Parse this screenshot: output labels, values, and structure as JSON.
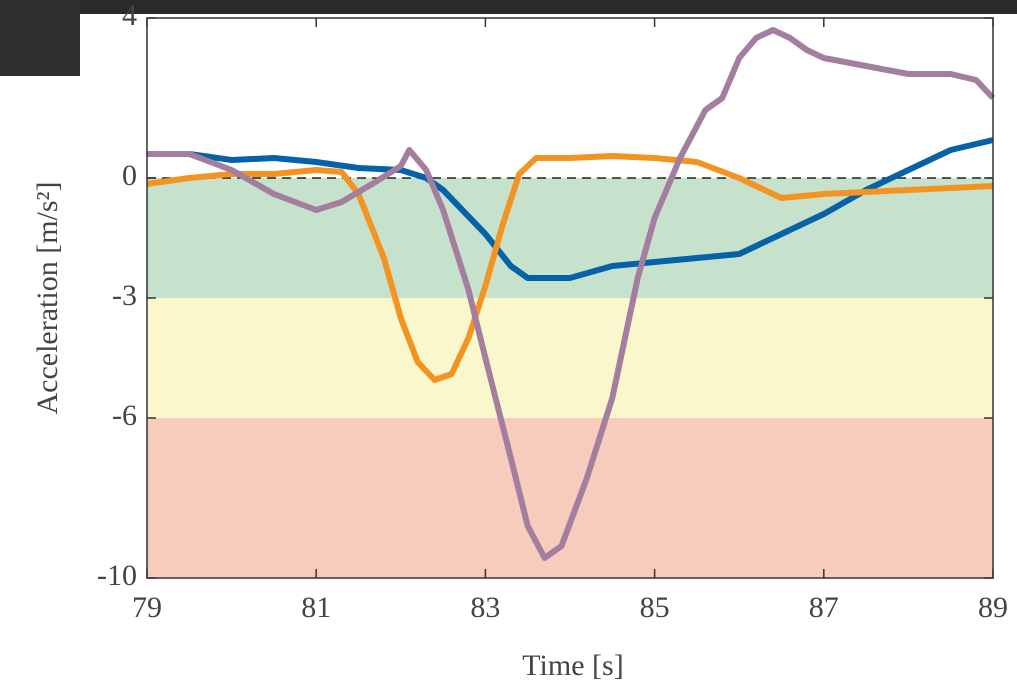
{
  "chart_data": {
    "type": "line",
    "xlabel": "Time [s]",
    "ylabel": "Acceleration [m/s²]",
    "xlim": [
      79,
      89
    ],
    "ylim": [
      -10,
      4
    ],
    "xticks": [
      79,
      81,
      83,
      85,
      87,
      89
    ],
    "yticks": [
      -10,
      -6,
      -3,
      0,
      4
    ],
    "bands": [
      {
        "from": 0,
        "to": -3,
        "color": "#c6e2cc"
      },
      {
        "from": -3,
        "to": -6,
        "color": "#fbf7cc"
      },
      {
        "from": -6,
        "to": -10,
        "color": "#f7ccbd"
      }
    ],
    "reference_line": 0,
    "series": [
      {
        "color": "#0562a8",
        "x": [
          79,
          79.5,
          80,
          80.5,
          81,
          81.5,
          82,
          82.3,
          82.5,
          83,
          83.3,
          83.5,
          84,
          84.5,
          85,
          85.5,
          86,
          86.5,
          87,
          87.5,
          88,
          88.5,
          89
        ],
        "values": [
          0.6,
          0.6,
          0.45,
          0.5,
          0.4,
          0.25,
          0.2,
          0.0,
          -0.3,
          -1.4,
          -2.2,
          -2.5,
          -2.5,
          -2.2,
          -2.1,
          -2.0,
          -1.9,
          -1.4,
          -0.9,
          -0.3,
          0.2,
          0.7,
          0.95
        ]
      },
      {
        "color": "#f39422",
        "x": [
          79,
          79.5,
          80,
          80.5,
          81,
          81.3,
          81.5,
          81.8,
          82,
          82.2,
          82.4,
          82.6,
          82.8,
          83,
          83.2,
          83.4,
          83.6,
          84,
          84.5,
          85,
          85.5,
          86,
          86.5,
          87,
          87.5,
          88,
          88.5,
          89
        ],
        "values": [
          -0.15,
          0.0,
          0.1,
          0.1,
          0.2,
          0.15,
          -0.4,
          -2.0,
          -3.5,
          -4.6,
          -5.05,
          -4.9,
          -4.0,
          -2.7,
          -1.2,
          0.1,
          0.5,
          0.5,
          0.55,
          0.5,
          0.4,
          0.0,
          -0.5,
          -0.4,
          -0.35,
          -0.3,
          -0.25,
          -0.2
        ]
      },
      {
        "color": "#a37e9e",
        "x": [
          79,
          79.5,
          80,
          80.5,
          81,
          81.3,
          81.7,
          82,
          82.1,
          82.3,
          82.5,
          82.8,
          83,
          83.3,
          83.5,
          83.7,
          83.9,
          84.2,
          84.5,
          84.8,
          85,
          85.3,
          85.6,
          85.8,
          86,
          86.2,
          86.4,
          86.6,
          86.8,
          87,
          87.5,
          88,
          88.5,
          88.8,
          89
        ],
        "values": [
          0.6,
          0.6,
          0.2,
          -0.4,
          -0.8,
          -0.6,
          -0.1,
          0.3,
          0.7,
          0.2,
          -0.8,
          -2.8,
          -4.5,
          -7.0,
          -8.7,
          -9.5,
          -9.2,
          -7.5,
          -5.5,
          -2.5,
          -1.0,
          0.5,
          1.7,
          2.0,
          3.0,
          3.5,
          3.7,
          3.5,
          3.2,
          3.0,
          2.8,
          2.6,
          2.6,
          2.45,
          2.0
        ]
      }
    ]
  }
}
